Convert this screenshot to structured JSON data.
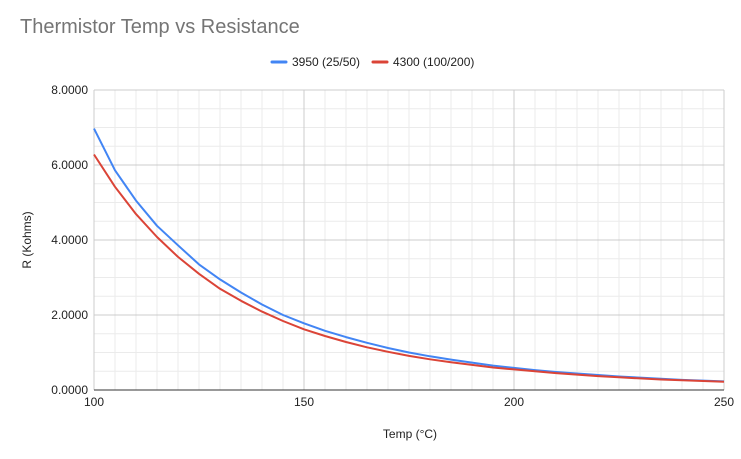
{
  "chart_data": {
    "type": "line",
    "title": "Thermistor Temp vs Resistance",
    "xlabel": "Temp (°C)",
    "ylabel": "R (Kohms)",
    "xlim": [
      100,
      250
    ],
    "ylim": [
      0,
      8
    ],
    "x_ticks": [
      "100",
      "150",
      "200",
      "250"
    ],
    "y_ticks": [
      "0.0000",
      "2.0000",
      "4.0000",
      "6.0000",
      "8.0000"
    ],
    "grid": true,
    "legend_position": "top",
    "x": [
      100,
      105,
      110,
      115,
      120,
      125,
      130,
      135,
      140,
      145,
      150,
      155,
      160,
      165,
      170,
      175,
      180,
      185,
      190,
      195,
      200,
      205,
      210,
      215,
      220,
      225,
      230,
      235,
      240,
      245,
      250
    ],
    "series": [
      {
        "name": "3950 (25/50)",
        "color": "#4285f4",
        "values": [
          6.97,
          5.86,
          5.05,
          4.38,
          3.86,
          3.35,
          2.95,
          2.6,
          2.28,
          2.0,
          1.78,
          1.58,
          1.41,
          1.26,
          1.12,
          1.0,
          0.9,
          0.81,
          0.73,
          0.65,
          0.59,
          0.53,
          0.48,
          0.44,
          0.4,
          0.36,
          0.33,
          0.3,
          0.27,
          0.25,
          0.23
        ]
      },
      {
        "name": "4300 (100/200)",
        "color": "#db4437",
        "values": [
          6.28,
          5.42,
          4.69,
          4.08,
          3.55,
          3.1,
          2.7,
          2.38,
          2.09,
          1.84,
          1.62,
          1.44,
          1.28,
          1.14,
          1.02,
          0.91,
          0.82,
          0.74,
          0.67,
          0.6,
          0.55,
          0.5,
          0.45,
          0.41,
          0.37,
          0.34,
          0.31,
          0.28,
          0.26,
          0.24,
          0.22
        ]
      }
    ]
  }
}
